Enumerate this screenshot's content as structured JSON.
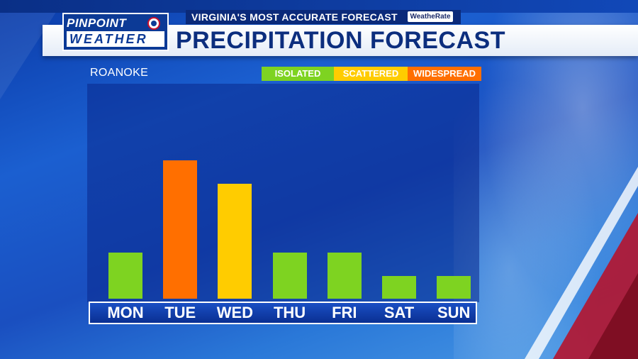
{
  "header": {
    "tagline": "VIRGINIA'S MOST ACCURATE FORECAST",
    "tagline_badge": "WeatheRate",
    "logo_top": "PINPOINT",
    "logo_bottom": "WEATHER",
    "title": "PRECIPITATION FORECAST"
  },
  "location": "ROANOKE",
  "legend": [
    {
      "label": "ISOLATED",
      "color": "#7ed321"
    },
    {
      "label": "SCATTERED",
      "color": "#ffcc00"
    },
    {
      "label": "WIDESPREAD",
      "color": "#ff6f00"
    }
  ],
  "chart_data": {
    "type": "bar",
    "title": "PRECIPITATION FORECAST",
    "xlabel": "",
    "ylabel": "",
    "categories": [
      "MON",
      "TUE",
      "WED",
      "THU",
      "FRI",
      "SAT",
      "SUN"
    ],
    "values": [
      2,
      6,
      5,
      2,
      2,
      1,
      1
    ],
    "levels": [
      "ISOLATED",
      "WIDESPREAD",
      "SCATTERED",
      "ISOLATED",
      "ISOLATED",
      "ISOLATED",
      "ISOLATED"
    ],
    "ylim": [
      0,
      8
    ],
    "grid": false
  }
}
